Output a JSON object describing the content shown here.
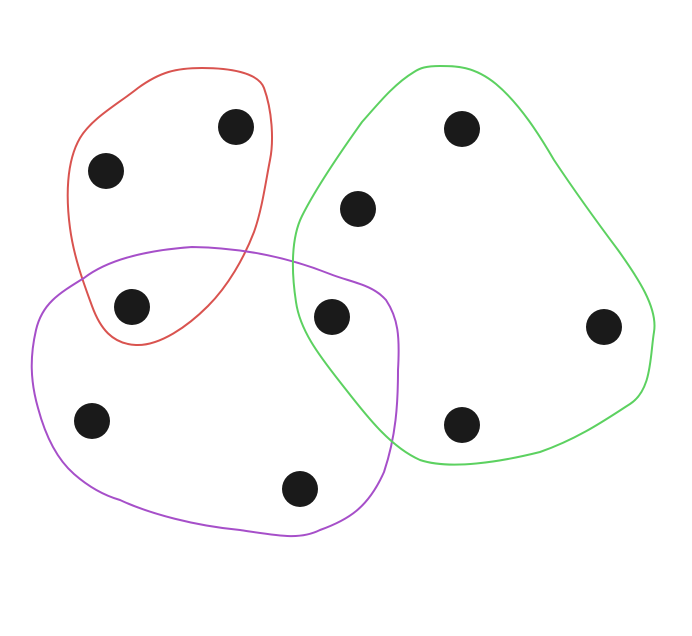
{
  "diagram": {
    "type": "venn-clusters",
    "groups": [
      {
        "id": "red-group",
        "color": "#d9534f",
        "members": [
          "a",
          "b",
          "c",
          "d"
        ]
      },
      {
        "id": "purple-group",
        "color": "#a64fc9",
        "members": [
          "c",
          "d",
          "e",
          "f"
        ]
      },
      {
        "id": "green-group",
        "color": "#5cd160",
        "members": [
          "d",
          "g",
          "h",
          "i",
          "j"
        ]
      }
    ],
    "points": [
      {
        "id": "a"
      },
      {
        "id": "b"
      },
      {
        "id": "c"
      },
      {
        "id": "d"
      },
      {
        "id": "e"
      },
      {
        "id": "f"
      },
      {
        "id": "g"
      },
      {
        "id": "h"
      },
      {
        "id": "i"
      },
      {
        "id": "j"
      }
    ],
    "point_color": "#1a1a1a"
  }
}
